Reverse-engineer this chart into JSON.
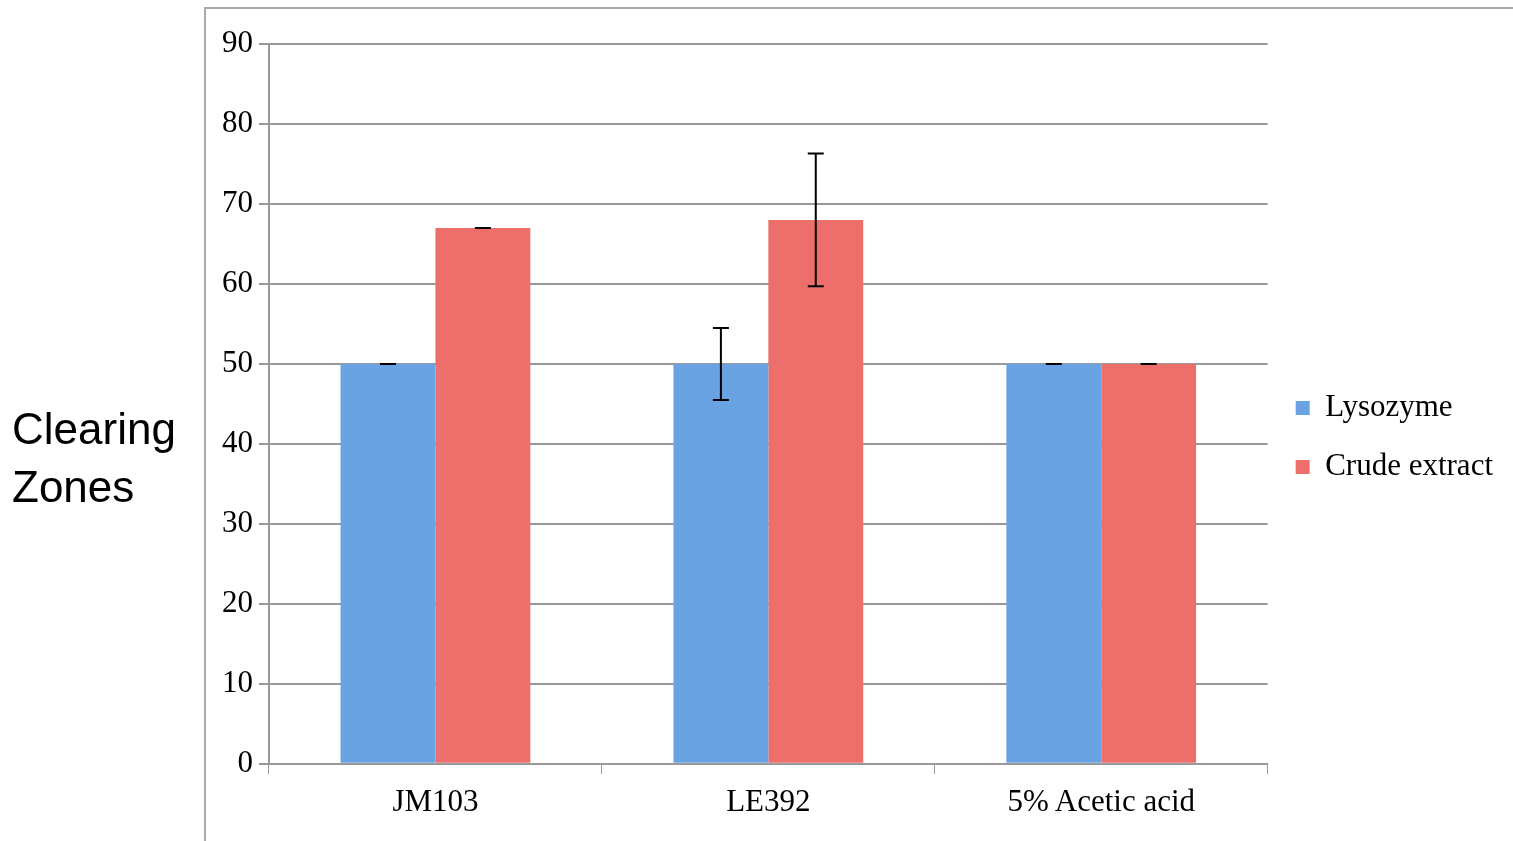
{
  "chart_data": {
    "type": "bar",
    "ylabel": "Clearing Zones",
    "categories": [
      "JM103",
      "LE392",
      "5% Acetic acid"
    ],
    "series": [
      {
        "name": "Lysozyme",
        "color": "#6aa3e3",
        "values": [
          50,
          50,
          50
        ],
        "errors": [
          0,
          4.5,
          0
        ]
      },
      {
        "name": "Crude extract",
        "color": "#ec6f6c",
        "values": [
          67,
          68,
          50
        ],
        "errors": [
          0,
          8.3,
          0
        ]
      }
    ],
    "ylim": [
      0,
      90
    ],
    "yticks": [
      0,
      10,
      20,
      30,
      40,
      50,
      60,
      70,
      80,
      90
    ],
    "grid": "y",
    "legend": "right"
  }
}
